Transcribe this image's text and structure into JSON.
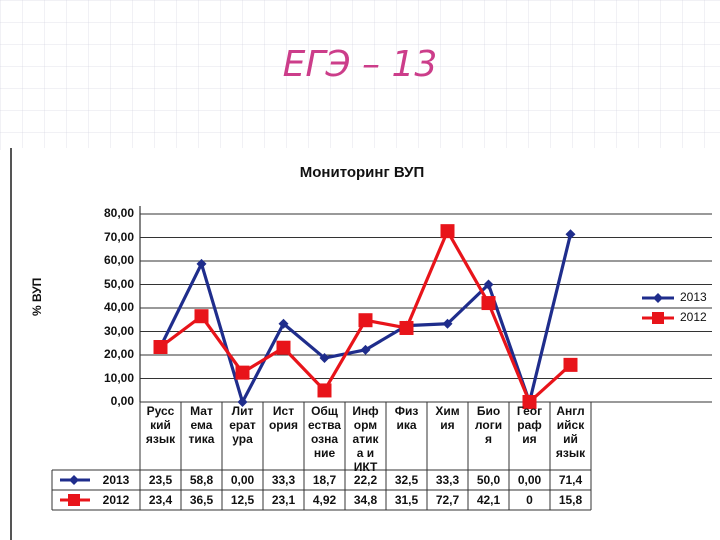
{
  "slide": {
    "title": "ЕГЭ – 13"
  },
  "chart_data": {
    "type": "line",
    "title": "Мониторинг  ВУП",
    "ylabel": "% ВУП",
    "ylim": [
      0,
      80
    ],
    "yticks": [
      "80,00",
      "70,00",
      "60,00",
      "50,00",
      "40,00",
      "30,00",
      "20,00",
      "10,00",
      "0,00"
    ],
    "categories": [
      [
        "Русс",
        "кий",
        "язык"
      ],
      [
        "Мат",
        "ема",
        "тика"
      ],
      [
        "Лит",
        "ерат",
        "ура"
      ],
      [
        "Ист",
        "ория"
      ],
      [
        "Общ",
        "ества",
        "озна",
        "ние"
      ],
      [
        "Инф",
        "орм",
        "атик",
        "а и",
        "ИКТ"
      ],
      [
        "Физ",
        "ика"
      ],
      [
        "Хим",
        "ия"
      ],
      [
        "Био",
        "логи",
        "я"
      ],
      [
        "Геог",
        "раф",
        "ия"
      ],
      [
        "Англ",
        "ийск",
        "ий",
        "язык"
      ]
    ],
    "series": [
      {
        "name": "2013",
        "color": "#1f2d8c",
        "marker": "diamond",
        "values": [
          23.5,
          58.8,
          0.0,
          33.3,
          18.7,
          22.2,
          32.5,
          33.3,
          50.0,
          0.0,
          71.4
        ],
        "labels": [
          "23,5",
          "58,8",
          "0,00",
          "33,3",
          "18,7",
          "22,2",
          "32,5",
          "33,3",
          "50,0",
          "0,00",
          "71,4"
        ]
      },
      {
        "name": "2012",
        "color": "#e8141a",
        "marker": "square",
        "values": [
          23.4,
          36.5,
          12.5,
          23.1,
          4.92,
          34.8,
          31.5,
          72.7,
          42.1,
          0,
          15.8
        ],
        "labels": [
          "23,4",
          "36,5",
          "12,5",
          "23,1",
          "4,92",
          "34,8",
          "31,5",
          "72,7",
          "42,1",
          "0",
          "15,8"
        ]
      }
    ],
    "legend": "right",
    "grid": true
  }
}
